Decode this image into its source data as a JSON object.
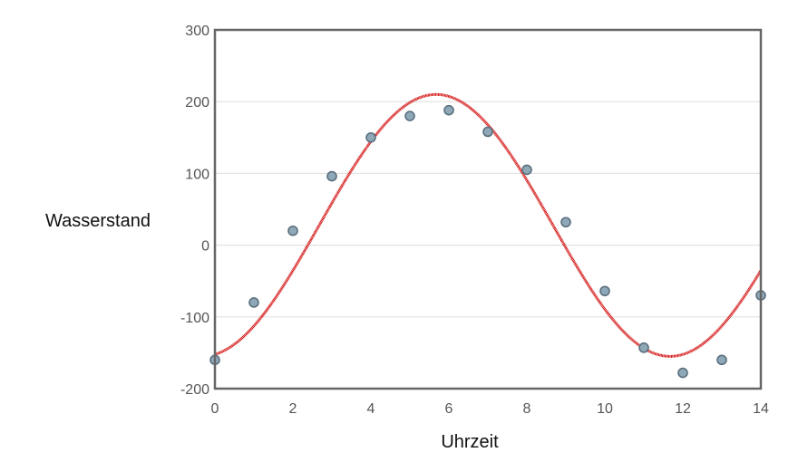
{
  "chart_data": {
    "type": "scatter",
    "xlabel": "Uhrzeit",
    "ylabel": "Wasserstand",
    "xlim": [
      0,
      14
    ],
    "ylim": [
      -200,
      300
    ],
    "xticks": [
      "0",
      "2",
      "4",
      "6",
      "8",
      "10",
      "12",
      "14"
    ],
    "yticks": [
      "300",
      "200",
      "100",
      "0",
      "-100",
      "-200"
    ],
    "grid": "horizontal",
    "series": [
      {
        "kind": "points",
        "x": [
          0,
          1,
          2,
          3,
          4,
          5,
          6,
          7,
          8,
          9,
          10,
          11,
          12,
          13,
          14
        ],
        "y": [
          -160,
          -80,
          20,
          96,
          150,
          180,
          188,
          158,
          105,
          32,
          -64,
          -143,
          -178,
          -160,
          -70
        ],
        "color": "#8fa8b8"
      },
      {
        "kind": "fit-curve",
        "model": "a + b*sin(c*x + d)",
        "params": {
          "a": 27.5,
          "b": 182.5,
          "c": 0.5236,
          "d": -1.3994
        },
        "color": "#d00000"
      }
    ]
  }
}
